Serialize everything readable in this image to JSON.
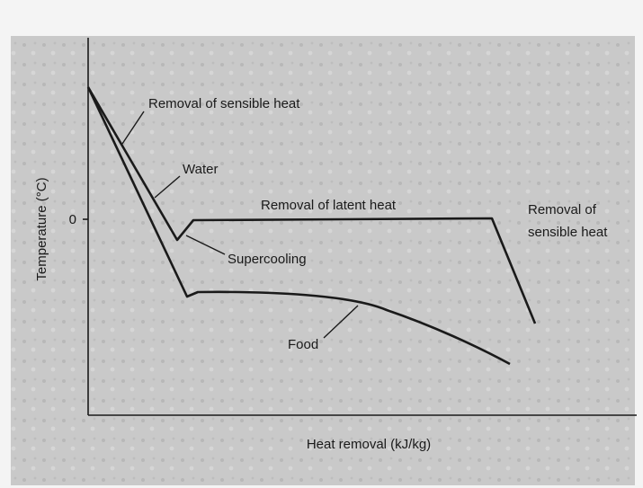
{
  "axes": {
    "x_label": "Heat removal (kJ/kg)",
    "y_label": "Temperature (°C)",
    "y_tick": "0"
  },
  "annotations": {
    "sensible_heat_start": "Removal of sensible heat",
    "water": "Water",
    "latent_heat": "Removal of latent heat",
    "supercooling": "Supercooling",
    "sensible_heat_end": [
      "Removal of",
      "sensible heat"
    ],
    "food": "Food"
  }
}
